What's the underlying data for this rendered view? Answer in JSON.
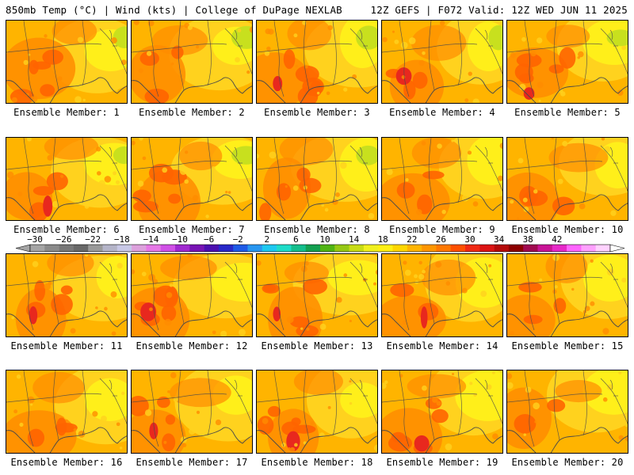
{
  "header": {
    "left_title": "850mb Temp (°C) | Wind (kts) | College of DuPage NEXLAB",
    "right_title": "12Z GEFS | F072 Valid: 12Z WED JUN 11 2025"
  },
  "panels": [
    {
      "label": "Ensemble Member: 1"
    },
    {
      "label": "Ensemble Member: 2"
    },
    {
      "label": "Ensemble Member: 3"
    },
    {
      "label": "Ensemble Member: 4"
    },
    {
      "label": "Ensemble Member: 5"
    },
    {
      "label": "Ensemble Member: 6"
    },
    {
      "label": "Ensemble Member: 7"
    },
    {
      "label": "Ensemble Member: 8"
    },
    {
      "label": "Ensemble Member: 9"
    },
    {
      "label": "Ensemble Member: 10"
    },
    {
      "label": "Ensemble Member: 11"
    },
    {
      "label": "Ensemble Member: 12"
    },
    {
      "label": "Ensemble Member: 13"
    },
    {
      "label": "Ensemble Member: 14"
    },
    {
      "label": "Ensemble Member: 15"
    },
    {
      "label": "Ensemble Member: 16"
    },
    {
      "label": "Ensemble Member: 17"
    },
    {
      "label": "Ensemble Member: 18"
    },
    {
      "label": "Ensemble Member: 19"
    },
    {
      "label": "Ensemble Member: 20"
    }
  ],
  "colorbar": {
    "tick_labels": [
      "−30",
      "−26",
      "−22",
      "−18",
      "−14",
      "−10",
      "−6",
      "−2",
      "2",
      "6",
      "10",
      "14",
      "18",
      "22",
      "26",
      "30",
      "34",
      "38",
      "42"
    ],
    "colors": [
      "#a4a4a4",
      "#8a8a8a",
      "#787878",
      "#686868",
      "#9a9a9a",
      "#b4b4c8",
      "#c8c8e6",
      "#dca0dc",
      "#e678e6",
      "#d050e6",
      "#a028d0",
      "#7814b4",
      "#4b0faf",
      "#2828c8",
      "#1e5ae6",
      "#2896f0",
      "#1ec8f0",
      "#1edcc8",
      "#14be8c",
      "#14a050",
      "#50b414",
      "#96c814",
      "#c8dc14",
      "#f0f01e",
      "#fff014",
      "#ffd700",
      "#ffb400",
      "#ff9600",
      "#ff7800",
      "#ff5000",
      "#f02814",
      "#dc1414",
      "#b40a0a",
      "#8c0000",
      "#a00a50",
      "#c81496",
      "#e628c8",
      "#ff64ff",
      "#ffa0ff",
      "#ffd2ff"
    ]
  },
  "map_colors": {
    "yellow": "#ffef1a",
    "yellow_green": "#c8e01e",
    "green": "#9ecf2a",
    "light_orange": "#ffd21e",
    "orange": "#ffb400",
    "deep_orange": "#ff8c00",
    "red_orange": "#ff6400",
    "red": "#e8281e",
    "boundary": "#4a4a4a"
  }
}
